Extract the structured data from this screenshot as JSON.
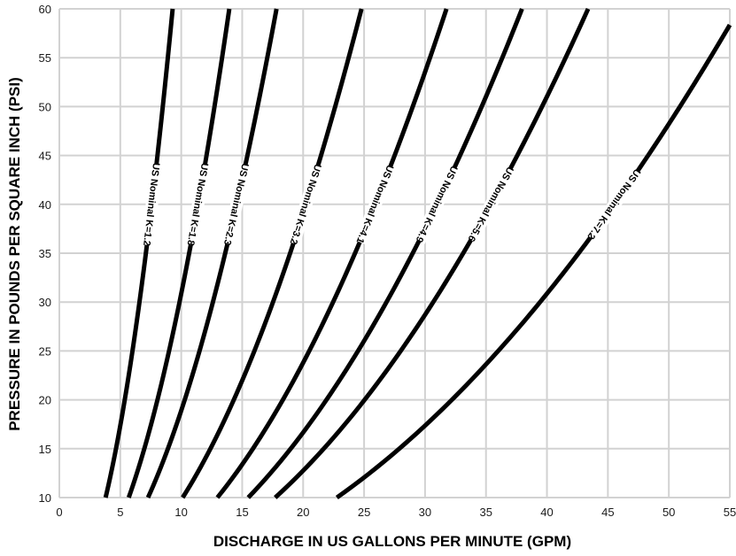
{
  "chart_data": {
    "type": "line",
    "title": "",
    "xlabel": "DISCHARGE IN US GALLONS PER MINUTE (GPM)",
    "ylabel": "PRESSURE IN POUNDS PER SQUARE INCH (PSI)",
    "xlim": [
      0,
      55
    ],
    "ylim": [
      10,
      60
    ],
    "x_ticks": [
      0,
      5,
      10,
      15,
      20,
      25,
      30,
      35,
      40,
      45,
      50,
      55
    ],
    "y_ticks": [
      10,
      15,
      20,
      25,
      30,
      35,
      40,
      45,
      50,
      55,
      60
    ],
    "grid": true,
    "legend": "none (curves labelled inline)",
    "relation": "Q = K * sqrt(P)",
    "series": [
      {
        "name": "US Nominal K=1.2",
        "k": 1.2,
        "label_y": 40
      },
      {
        "name": "US Nominal K=1.8",
        "k": 1.8,
        "label_y": 40
      },
      {
        "name": "US Nominal K=2.3",
        "k": 2.3,
        "label_y": 40
      },
      {
        "name": "US Nominal K=3.2",
        "k": 3.2,
        "label_y": 40
      },
      {
        "name": "US Nominal K=4.1",
        "k": 4.1,
        "label_y": 40
      },
      {
        "name": "US Nominal K=4.9",
        "k": 4.9,
        "label_y": 40
      },
      {
        "name": "US Nominal K=5.6",
        "k": 5.6,
        "label_y": 40
      },
      {
        "name": "US Nominal K=7.2",
        "k": 7.2,
        "label_y": 40
      }
    ],
    "colors": {
      "curve": "#000000",
      "grid": "#d2d2d2",
      "background": "#ffffff"
    }
  }
}
